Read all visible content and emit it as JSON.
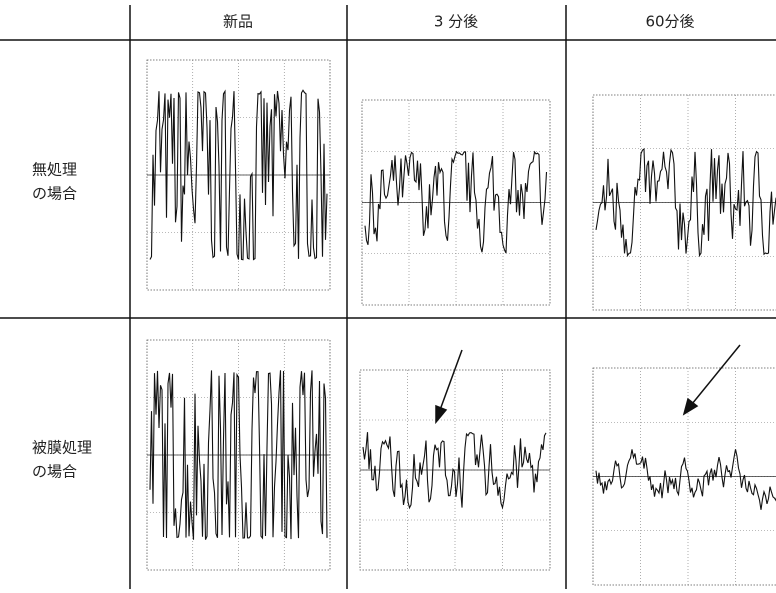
{
  "table": {
    "header": [
      "新品",
      "3 分後",
      "60分後"
    ],
    "rows": [
      {
        "label": [
          "無処理",
          "の場合"
        ]
      },
      {
        "label": [
          "被膜処理",
          "の場合"
        ]
      }
    ]
  }
}
